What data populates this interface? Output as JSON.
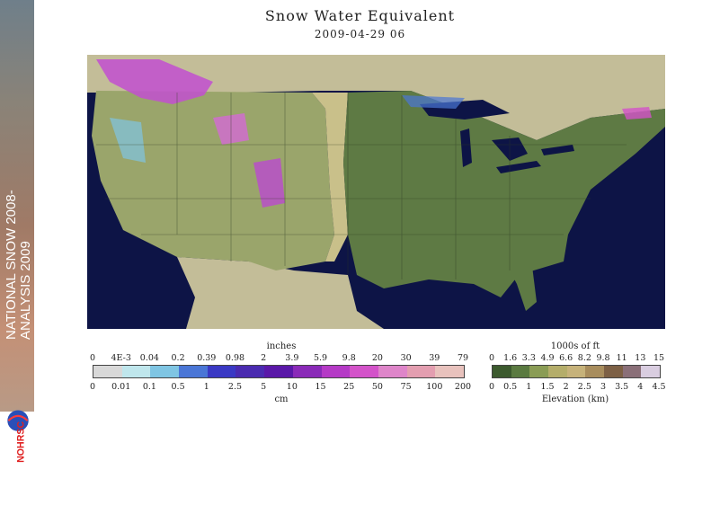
{
  "sidebar": {
    "vertical_text_line1": "NATIONAL SNOW 2008-",
    "vertical_text_line2": "ANALYSIS 2009",
    "logo_text": "NOHRSC"
  },
  "header": {
    "title": "Snow Water Equivalent",
    "timestamp": "2009-04-29 06"
  },
  "swe_legend": {
    "top_label": "inches",
    "bottom_label": "cm",
    "inch_ticks": [
      "0",
      "4E-3",
      "0.04",
      "0.2",
      "0.39",
      "0.98",
      "2",
      "3.9",
      "5.9",
      "9.8",
      "20",
      "30",
      "39",
      "79"
    ],
    "cm_ticks": [
      "0",
      "0.01",
      "0.1",
      "0.5",
      "1",
      "2.5",
      "5",
      "10",
      "15",
      "25",
      "50",
      "75",
      "100",
      "200"
    ],
    "colors": [
      "#d8d8d8",
      "#bfe6ec",
      "#7fc5e3",
      "#4a76d6",
      "#3a39c4",
      "#4a2bb0",
      "#5a18a8",
      "#8a2ab8",
      "#b53ac6",
      "#d353c9",
      "#de85c9",
      "#e39eb0",
      "#e8c2bd"
    ]
  },
  "elevation_legend": {
    "top_label": "1000s of ft",
    "bottom_label": "Elevation (km)",
    "ft_ticks": [
      "0",
      "1.6",
      "3.3",
      "4.9",
      "6.6",
      "8.2",
      "9.8",
      "11",
      "13",
      "15"
    ],
    "km_ticks": [
      "0",
      "0.5",
      "1",
      "1.5",
      "2",
      "2.5",
      "3",
      "3.5",
      "4",
      "4.5"
    ],
    "colors": [
      "#3c5a2e",
      "#5a7a40",
      "#8a9c55",
      "#b4ad6a",
      "#c6b27a",
      "#a88d5d",
      "#7d6045",
      "#8a6f78",
      "#d9cde0"
    ]
  }
}
